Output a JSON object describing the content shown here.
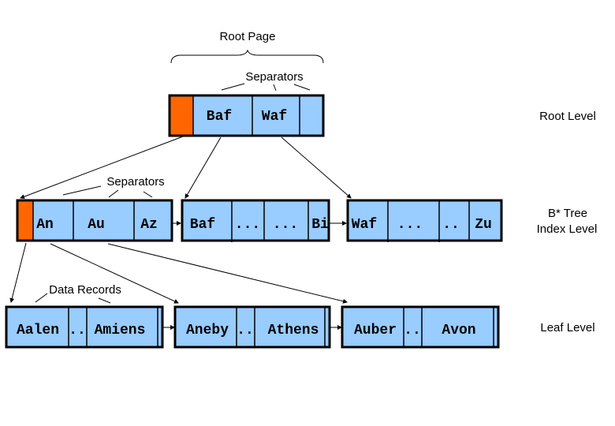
{
  "labels": {
    "root_page": "Root Page",
    "root_separators": "Separators",
    "index_separators": "Separators",
    "data_records": "Data Records",
    "root_level": "Root Level",
    "index_level_line1": "B* Tree",
    "index_level_line2": "Index Level",
    "leaf_level": "Leaf Level"
  },
  "root": {
    "keys": [
      "Baf",
      "Waf"
    ]
  },
  "index_nodes": [
    {
      "keys": [
        "An",
        "Au",
        "Az"
      ]
    },
    {
      "keys": [
        "Baf",
        "...",
        "...",
        "Bi"
      ]
    },
    {
      "keys": [
        "Waf",
        "...",
        "..",
        "Zu"
      ]
    }
  ],
  "leaf_nodes": [
    {
      "keys": [
        "Aalen",
        "..",
        "Amiens"
      ]
    },
    {
      "keys": [
        "Aneby",
        "..",
        "Athens"
      ]
    },
    {
      "keys": [
        "Auber",
        "..",
        "Avon"
      ]
    }
  ],
  "colors": {
    "node_fill": "#99CCFF",
    "pointer_fill": "#FF6600",
    "border": "#000000"
  }
}
